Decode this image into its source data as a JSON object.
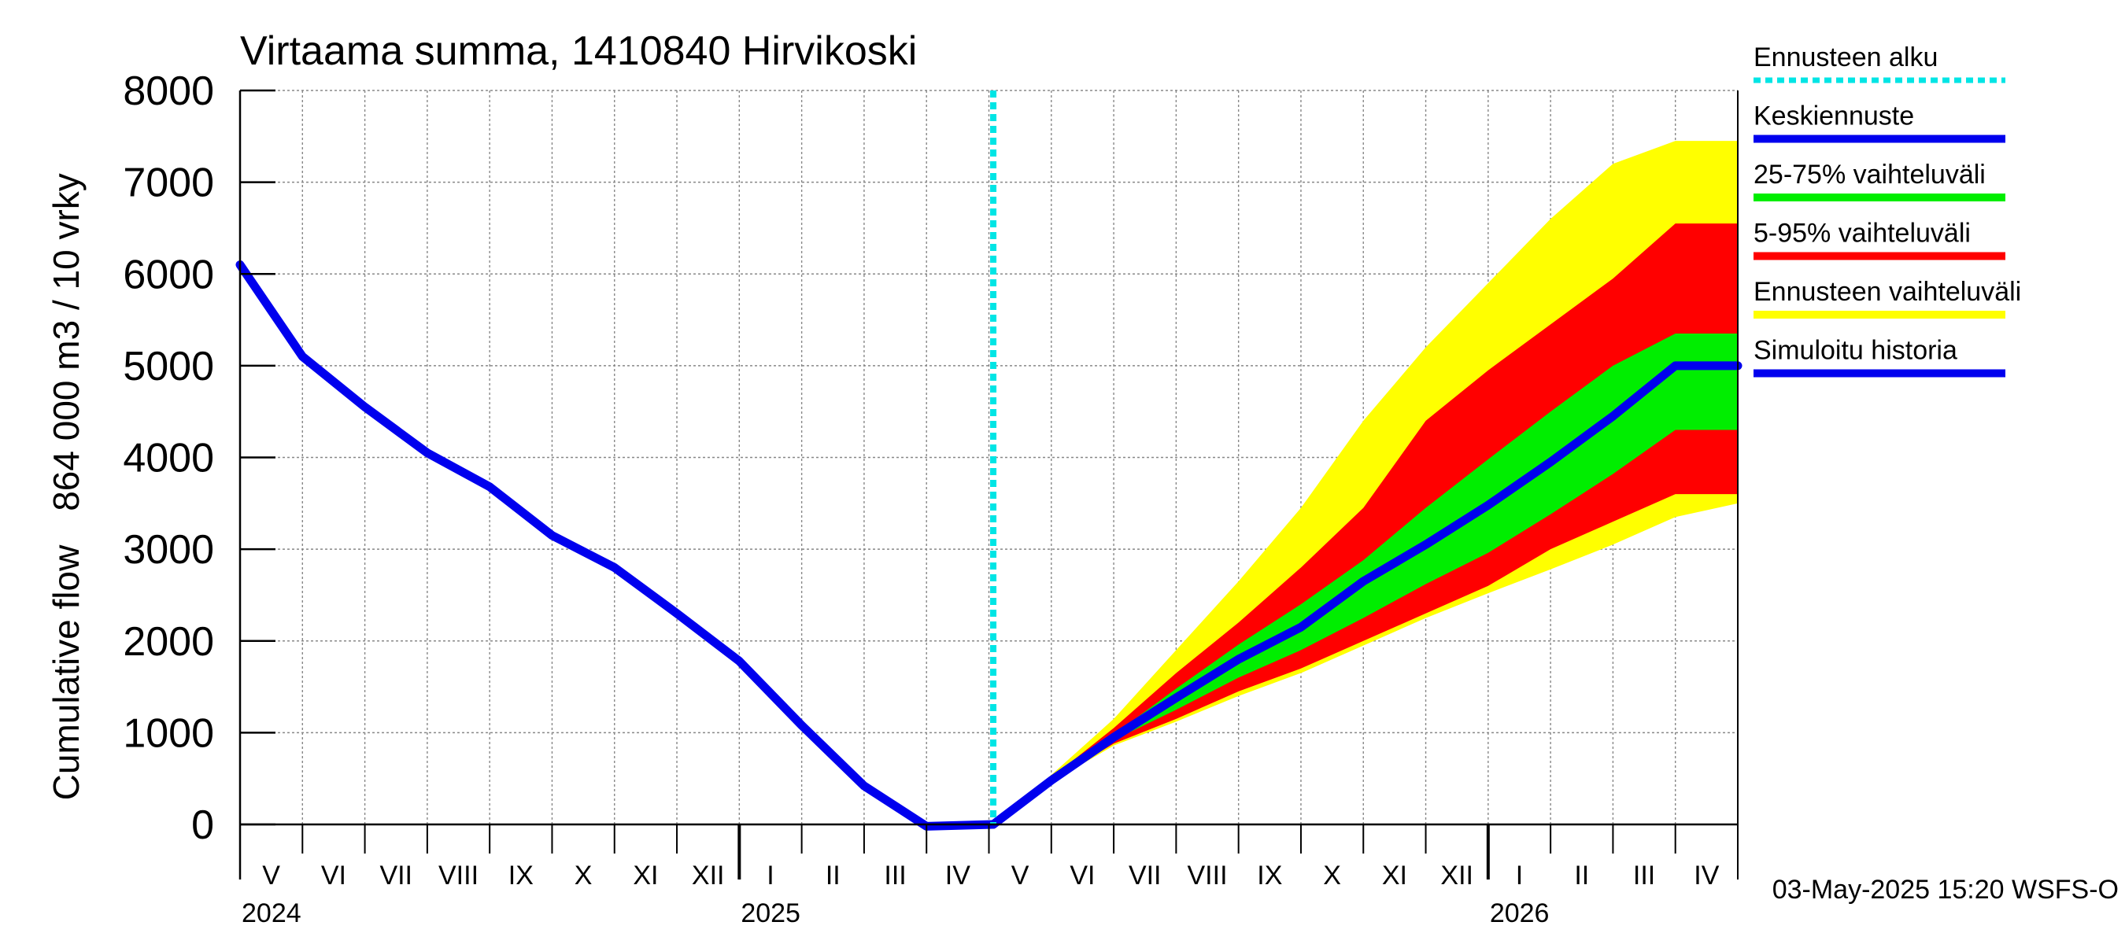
{
  "chart_data": {
    "type": "area",
    "title": "Virtaama summa, 1410840 Hirvikoski",
    "ylabel_primary": "864 000 m3 / 10 vrky",
    "ylabel_secondary": "Cumulative flow",
    "ylim": [
      0,
      8000
    ],
    "yticks": [
      {
        "value": 0,
        "label": "0"
      },
      {
        "value": 1000,
        "label": "1000"
      },
      {
        "value": 2000,
        "label": "2000"
      },
      {
        "value": 3000,
        "label": "3000"
      },
      {
        "value": 4000,
        "label": "4000"
      },
      {
        "value": 5000,
        "label": "5000"
      },
      {
        "value": 6000,
        "label": "6000"
      },
      {
        "value": 7000,
        "label": "7000"
      },
      {
        "value": 8000,
        "label": "8000"
      }
    ],
    "x_unit": "months since 2024-05-01",
    "xlim": [
      0,
      24
    ],
    "months": [
      "V",
      "VI",
      "VII",
      "VIII",
      "IX",
      "X",
      "XI",
      "XII",
      "I",
      "II",
      "III",
      "IV",
      "V",
      "VI",
      "VII",
      "VIII",
      "IX",
      "X",
      "XI",
      "XII",
      "I",
      "II",
      "III",
      "IV"
    ],
    "years": [
      {
        "label": "2024",
        "x": 0
      },
      {
        "label": "2025",
        "x": 8
      },
      {
        "label": "2026",
        "x": 20
      }
    ],
    "forecast_start": 12.07,
    "colors": {
      "forecast_start": "#00e5e5",
      "mean": "#0000ee",
      "p25_75": "#00ee00",
      "p5_95": "#ff0000",
      "range": "#ffff00",
      "history": "#0000ee"
    },
    "history": {
      "x": [
        0,
        1,
        2,
        3,
        4,
        5,
        6,
        7,
        8,
        9,
        10,
        11,
        12.07
      ],
      "y": [
        6100,
        5100,
        4550,
        4050,
        3680,
        3150,
        2800,
        2300,
        1780,
        1080,
        420,
        -20,
        0
      ]
    },
    "forecast": {
      "x": [
        12.07,
        13,
        14,
        15,
        16,
        17,
        18,
        19,
        20,
        21,
        22,
        23,
        24
      ],
      "mean": [
        0,
        480,
        950,
        1380,
        1800,
        2150,
        2650,
        3050,
        3480,
        3950,
        4450,
        5000,
        5000
      ],
      "p25": [
        0,
        480,
        920,
        1250,
        1600,
        1900,
        2250,
        2620,
        2960,
        3380,
        3820,
        4300,
        4300
      ],
      "p75": [
        0,
        490,
        980,
        1480,
        1960,
        2400,
        2880,
        3450,
        3980,
        4500,
        5000,
        5350,
        5350
      ],
      "p5": [
        0,
        470,
        880,
        1150,
        1450,
        1700,
        2000,
        2300,
        2600,
        3000,
        3300,
        3600,
        3600
      ],
      "p95": [
        0,
        510,
        1050,
        1650,
        2200,
        2800,
        3450,
        4400,
        4950,
        5450,
        5950,
        6550,
        6550
      ],
      "min": [
        0,
        460,
        860,
        1120,
        1400,
        1650,
        1950,
        2250,
        2520,
        2780,
        3050,
        3350,
        3500
      ],
      "max": [
        0,
        540,
        1150,
        1900,
        2650,
        3450,
        4400,
        5200,
        5900,
        6600,
        7200,
        7450,
        7450
      ]
    },
    "legend": [
      {
        "label": "Ennusteen alku",
        "key": "forecast_start",
        "style": "dotted"
      },
      {
        "label": "Keskiennuste",
        "key": "mean",
        "style": "solid"
      },
      {
        "label": "25-75% vaihteluväli",
        "key": "p25_75",
        "style": "solid"
      },
      {
        "label": "5-95% vaihteluväli",
        "key": "p5_95",
        "style": "solid"
      },
      {
        "label": "Ennusteen vaihteluväli",
        "key": "range",
        "style": "solid"
      },
      {
        "label": "Simuloitu historia",
        "key": "history",
        "style": "solid"
      }
    ],
    "footer": "03-May-2025 15:20 WSFS-O"
  }
}
